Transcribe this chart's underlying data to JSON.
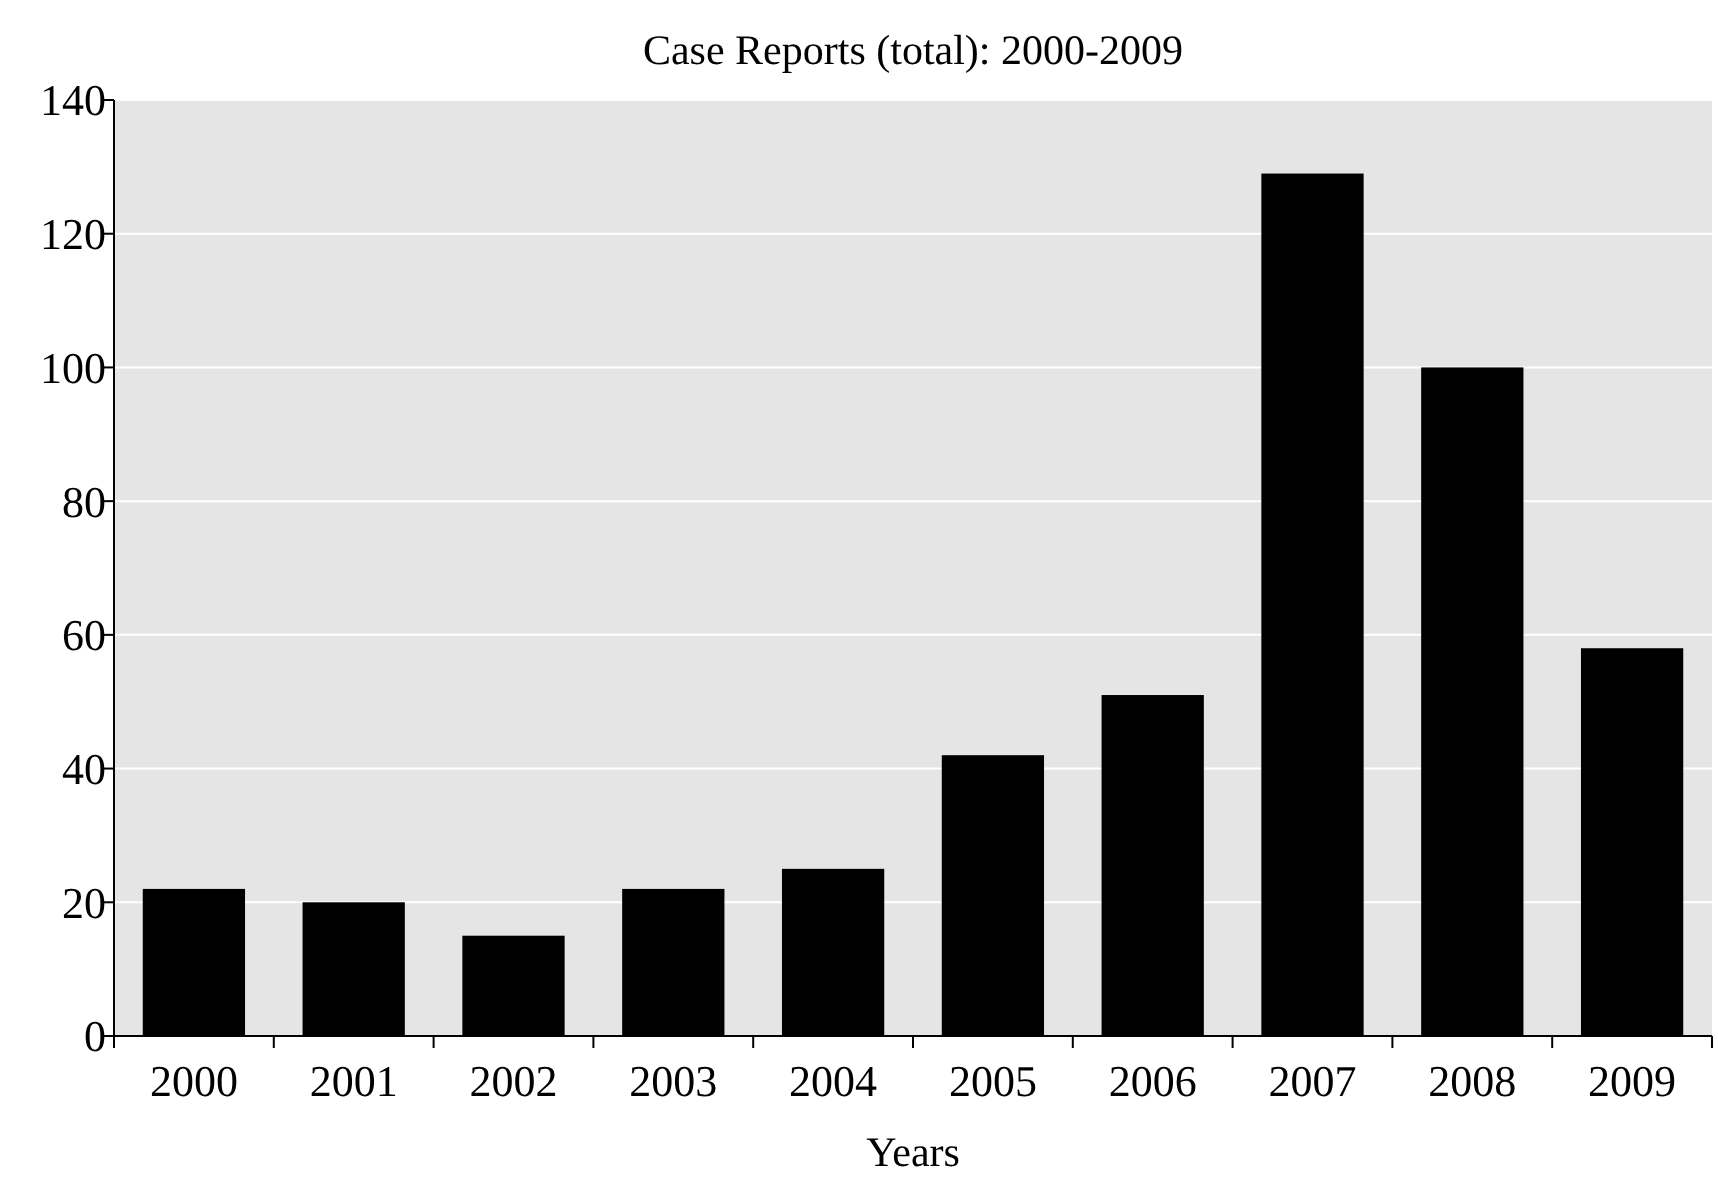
{
  "chart_data": {
    "type": "bar",
    "title": "Case Reports (total): 2000-2009",
    "xlabel": "Years",
    "categories": [
      "2000",
      "2001",
      "2002",
      "2003",
      "2004",
      "2005",
      "2006",
      "2007",
      "2008",
      "2009"
    ],
    "values": [
      22,
      20,
      15,
      22,
      25,
      42,
      51,
      129,
      100,
      58
    ],
    "color": "#000000",
    "ylim": [
      0,
      140
    ],
    "yticks": [
      0,
      20,
      40,
      60,
      80,
      100,
      120,
      140
    ],
    "grid": "y"
  }
}
